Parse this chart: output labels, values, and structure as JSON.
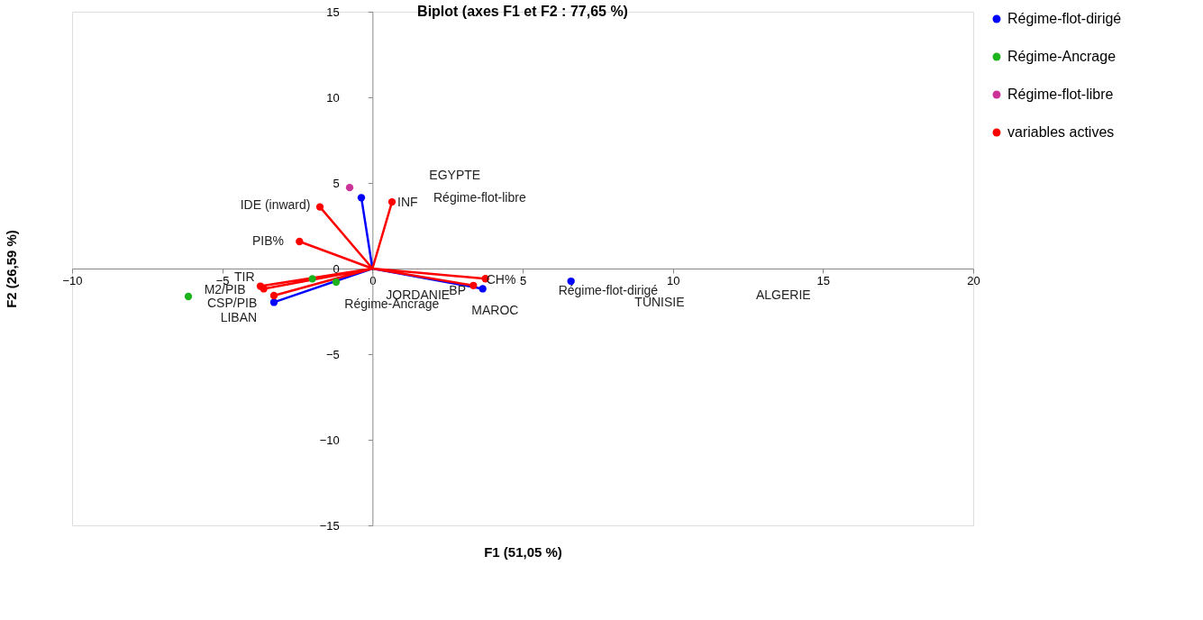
{
  "chart_data": {
    "type": "scatter",
    "title": "Biplot (axes F1 et F2 : 77,65 %)",
    "xlabel": "F1 (51,05 %)",
    "ylabel": "F2 (26,59 %)",
    "xlim": [
      -10,
      20
    ],
    "ylim": [
      -15,
      15
    ],
    "xticks": [
      -10,
      -5,
      0,
      5,
      10,
      15,
      20
    ],
    "yticks": [
      -15,
      -10,
      -5,
      0,
      5,
      10,
      15
    ],
    "legend": "right",
    "marker": "circle",
    "series": [
      {
        "type": "line",
        "color": "#0000ff",
        "x": [
          -0.37,
          0,
          3.67,
          0,
          -3.28
        ],
        "values": [
          4.14,
          0,
          -1.18,
          0,
          -1.97
        ],
        "marker": "none"
      },
      {
        "type": "line",
        "color": "#ff0000",
        "x": [
          -1.75,
          0,
          -2.43,
          0,
          0.65,
          0,
          3.76,
          0,
          3.36,
          0,
          -3.73,
          0,
          -3.62,
          0,
          -3.28
        ],
        "values": [
          3.6,
          0,
          1.58,
          0,
          3.89,
          0,
          -0.59,
          0,
          -0.99,
          0,
          -1.03,
          0,
          -1.18,
          0,
          -1.58
        ],
        "marker": "none"
      },
      {
        "name": "Régime-flot-dirigé",
        "color": "#0000ff",
        "x": [
          -0.37,
          3.67,
          6.61,
          -3.28
        ],
        "values": [
          4.14,
          -1.18,
          -0.74,
          -1.97
        ]
      },
      {
        "name": "Régime-Ancrage",
        "color": "#1db31d",
        "x": [
          -6.13,
          -2.0,
          -1.21
        ],
        "values": [
          -1.63,
          -0.6,
          -0.79
        ]
      },
      {
        "name": "Régime-flot-libre",
        "color": "#cc3399",
        "x": [
          -0.76
        ],
        "values": [
          4.73
        ]
      },
      {
        "name": "variables actives",
        "color": "#ff0000",
        "x": [
          -1.75,
          -2.43,
          0.65,
          3.76,
          3.36,
          -3.73,
          -3.62,
          -3.28
        ],
        "values": [
          3.6,
          1.58,
          3.89,
          -0.59,
          -0.99,
          -1.03,
          -1.18,
          -1.58
        ]
      }
    ],
    "annotations": [
      "EGYPTE",
      "LIBAN",
      "JORDANIE",
      "MAROC",
      "TUNISIE",
      "ALGERIE",
      "Régime-flot-libre",
      "Régime-flot-dirigé",
      "Régime-Ancrage",
      "IDE (inward)",
      "PIB%",
      "INF",
      "CH%",
      "BP",
      "TIR",
      "M2/PIB",
      "CSP/PIB"
    ]
  }
}
